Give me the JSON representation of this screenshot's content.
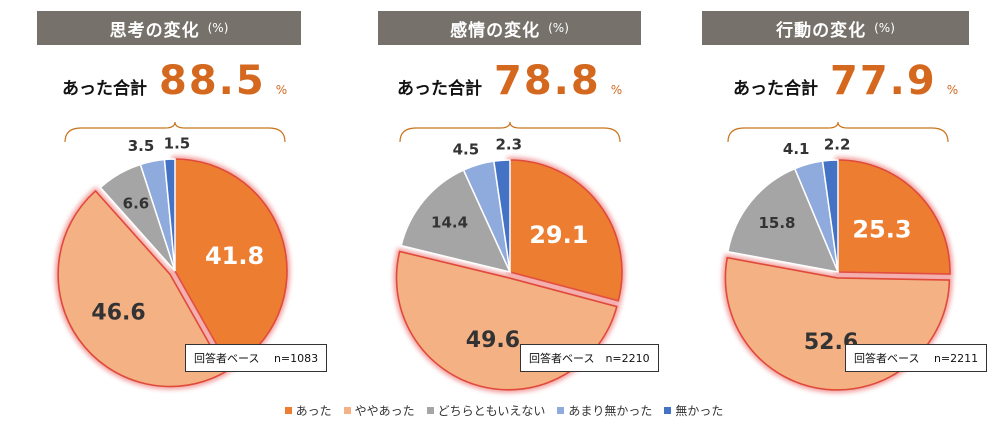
{
  "colors": {
    "atta": "#ed7d31",
    "yaya": "#f4b183",
    "dochira": "#a5a5a5",
    "amari": "#8faadc",
    "nakatta": "#4472c4"
  },
  "chart_data": [
    {
      "type": "pie",
      "title": "思考の変化",
      "unit": "(%)",
      "total_label": "あった合計",
      "total_value": "88.5",
      "total_unit": "%",
      "base": "回答者ベース　 n=1083",
      "categories": [
        "あった",
        "ややあった",
        "どちらともいえない",
        "あまり無かった",
        "無かった"
      ],
      "values": [
        41.8,
        46.6,
        6.6,
        3.5,
        1.5
      ]
    },
    {
      "type": "pie",
      "title": "感情の変化",
      "unit": "(%)",
      "total_label": "あった合計",
      "total_value": "78.8",
      "total_unit": "%",
      "base": "回答者ベース　n=2210",
      "categories": [
        "あった",
        "ややあった",
        "どちらともいえない",
        "あまり無かった",
        "無かった"
      ],
      "values": [
        29.1,
        49.6,
        14.4,
        4.5,
        2.3
      ]
    },
    {
      "type": "pie",
      "title": "行動の変化",
      "unit": "(%)",
      "total_label": "あった合計",
      "total_value": "77.9",
      "total_unit": "%",
      "base": "回答者ベース　 n=2211",
      "categories": [
        "あった",
        "ややあった",
        "どちらともいえない",
        "あまり無かった",
        "無かった"
      ],
      "values": [
        25.3,
        52.6,
        15.8,
        4.1,
        2.2
      ]
    }
  ],
  "legend": [
    "あった",
    "ややあった",
    "どちらともいえない",
    "あまり無かった",
    "無かった"
  ]
}
